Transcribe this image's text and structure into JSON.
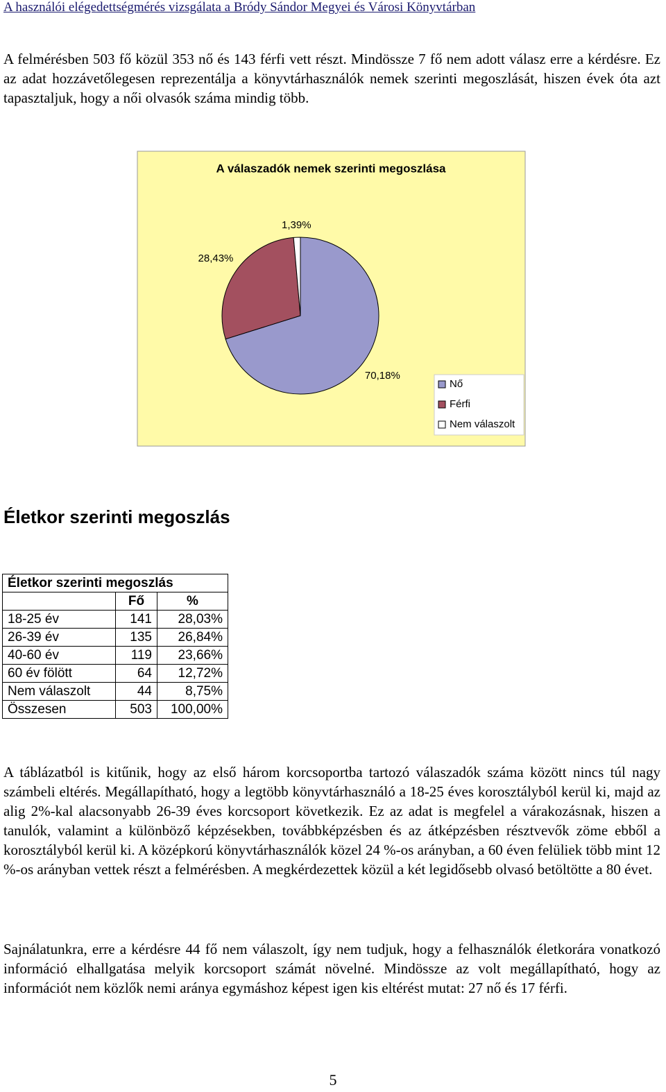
{
  "header": {
    "title": "A használói elégedettségmérés vizsgálata a Bródy Sándor Megyei és Városi Könyvtárban"
  },
  "paragraphs": [
    "A felmérésben 503 fő közül 353 nő és 143 férfi vett részt. Mindössze 7 fő nem adott válasz erre a kérdésre. Ez az adat hozzávetőlegesen reprezentálja a könyvtárhasználók nemek szerinti megoszlását, hiszen évek óta azt tapasztaljuk, hogy a női olvasók száma mindig több."
  ],
  "chart_data": {
    "type": "pie",
    "title": "A válaszadók nemek szerinti megoszlása",
    "categories": [
      "Nő",
      "Férfi",
      "Nem válaszolt"
    ],
    "values": [
      70.18,
      28.43,
      1.39
    ],
    "value_labels": [
      "70,18%",
      "28,43%",
      "1,39%"
    ],
    "colors": [
      "#9999cc",
      "#a3505f",
      "#ffffff"
    ],
    "background": "#fffaa8",
    "legend": "bottom-right"
  },
  "section_title": "Életkor szerinti megoszlás",
  "table": {
    "title": "Életkor szerinti megoszlás",
    "header": [
      "Fő",
      "%"
    ],
    "rows": [
      [
        "18-25 év",
        "141",
        "28,03%"
      ],
      [
        "26-39 év",
        "135",
        "26,84%"
      ],
      [
        "40-60 év",
        "119",
        "23,66%"
      ],
      [
        "60 év fölött",
        "64",
        "12,72%"
      ],
      [
        "Nem válaszolt",
        "44",
        "8,75%"
      ],
      [
        "Összesen",
        "503",
        "100,00%"
      ]
    ]
  },
  "paragraphs_after": [
    "A táblázatból is kitűnik, hogy az első három korcsoportba tartozó válaszadók száma között nincs túl nagy számbeli eltérés. Megállapítható, hogy a legtöbb könyvtárhasználó a 18-25 éves korosztályból kerül ki, majd az alig 2%-kal alacsonyabb 26-39 éves korcsoport következik. Ez az adat is megfelel a várakozásnak, hiszen a tanulók, valamint a különböző képzésekben, továbbképzésben és az átképzésben résztvevők zöme ebből a korosztályból kerül ki. A középkorú könyvtárhasználók közel 24 %-os arányban, a 60 éven felüliek több mint 12 %-os arányban vettek részt a felmérésben. A megkérdezettek közül a két legidősebb olvasó betöltötte a 80 évet.",
    "Sajnálatunkra, erre a kérdésre 44 fő nem válaszolt, így nem tudjuk, hogy a felhasználók életkorára vonatkozó információ elhallgatása melyik korcsoport számát növelné. Mindössze az volt megállapítható, hogy az információt nem közlők nemi aránya egymáshoz képest igen kis eltérést mutat: 27 nő és 17 férfi."
  ],
  "page_number": "5"
}
